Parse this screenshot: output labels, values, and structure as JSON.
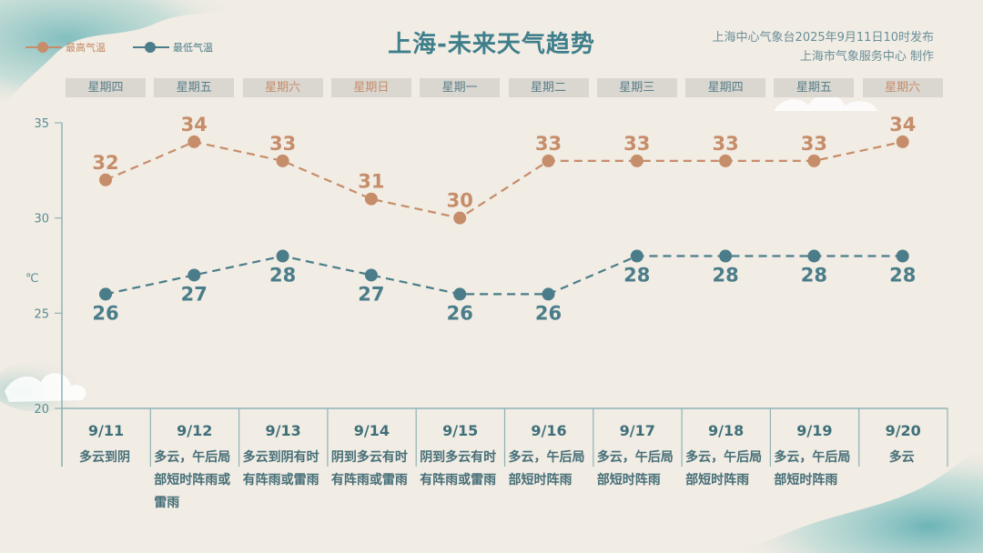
{
  "header": {
    "title": "上海-未来天气趋势",
    "issuer_line1": "上海中心气象台2025年9月11日10时发布",
    "issuer_line2": "上海市气象服务中心 制作"
  },
  "legend": {
    "high_label": "最高气温",
    "low_label": "最低气温"
  },
  "weekdays": [
    {
      "label": "星期四",
      "weekend": false
    },
    {
      "label": "星期五",
      "weekend": false
    },
    {
      "label": "星期六",
      "weekend": true
    },
    {
      "label": "星期日",
      "weekend": true
    },
    {
      "label": "星期一",
      "weekend": false
    },
    {
      "label": "星期二",
      "weekend": false
    },
    {
      "label": "星期三",
      "weekend": false
    },
    {
      "label": "星期四",
      "weekend": false
    },
    {
      "label": "星期五",
      "weekend": false
    },
    {
      "label": "星期六",
      "weekend": true
    }
  ],
  "days": [
    {
      "date": "9/11",
      "weather": "多云到阴"
    },
    {
      "date": "9/12",
      "weather": "多云，午后局部短时阵雨或雷雨"
    },
    {
      "date": "9/13",
      "weather": "多云到阴有时有阵雨或雷雨"
    },
    {
      "date": "9/14",
      "weather": "阴到多云有时有阵雨或雷雨"
    },
    {
      "date": "9/15",
      "weather": "阴到多云有时有阵雨或雷雨"
    },
    {
      "date": "9/16",
      "weather": "多云，午后局部短时阵雨"
    },
    {
      "date": "9/17",
      "weather": "多云，午后局部短时阵雨"
    },
    {
      "date": "9/18",
      "weather": "多云，午后局部短时阵雨"
    },
    {
      "date": "9/19",
      "weather": "多云，午后局部短时阵雨"
    },
    {
      "date": "9/20",
      "weather": "多云"
    }
  ],
  "colors": {
    "high": "#c68d6a",
    "low": "#4a7d89",
    "axis": "#8fb3b6",
    "title": "#3f7f8c"
  },
  "chart_data": {
    "type": "line",
    "categories": [
      "9/11",
      "9/12",
      "9/13",
      "9/14",
      "9/15",
      "9/16",
      "9/17",
      "9/18",
      "9/19",
      "9/20"
    ],
    "series": [
      {
        "name": "最高气温",
        "values": [
          32,
          34,
          33,
          31,
          30,
          33,
          33,
          33,
          33,
          34
        ]
      },
      {
        "name": "最低气温",
        "values": [
          26,
          27,
          28,
          27,
          26,
          26,
          28,
          28,
          28,
          28
        ]
      }
    ],
    "ylabel": "℃",
    "ylim": [
      20,
      35
    ],
    "yticks": [
      20,
      25,
      30,
      35
    ],
    "grid": false,
    "legend_position": "top-left"
  }
}
